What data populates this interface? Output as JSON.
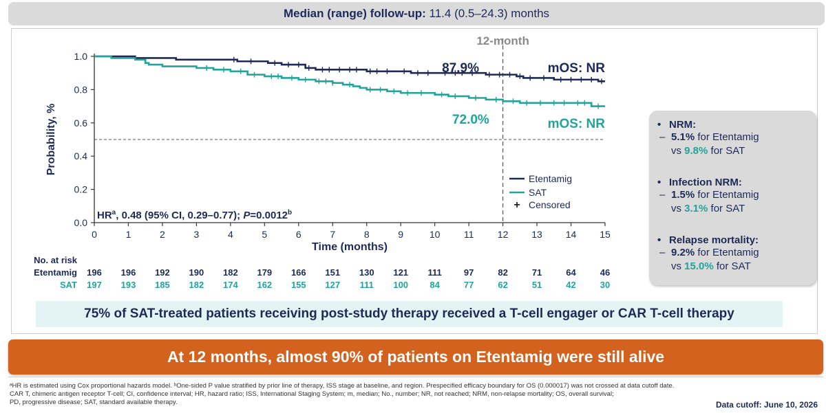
{
  "followup": {
    "label": "Median (range) follow-up:",
    "value": "11.4 (0.5–24.3) months"
  },
  "chart_data": {
    "type": "line",
    "xlabel": "Time (months)",
    "ylabel": "Probability, %",
    "xlim": [
      0,
      15
    ],
    "ylim": [
      0,
      1.0
    ],
    "x_ticks": [
      "0",
      "1",
      "2",
      "3",
      "4",
      "5",
      "6",
      "7",
      "8",
      "9",
      "10",
      "11",
      "12",
      "13",
      "14",
      "15"
    ],
    "y_ticks": [
      "0.0",
      "0.2",
      "0.4",
      "0.6",
      "0.8",
      "1.0"
    ],
    "reference_line_y": 0.5,
    "landmark_x": 12,
    "landmark_label": "12-month",
    "colors": {
      "etentamig": "#1d2a57",
      "sat": "#21a59a",
      "reference": "#555555"
    },
    "series": [
      {
        "name": "Etentamig",
        "curve": [
          [
            0,
            1.0
          ],
          [
            1.1,
            1.0
          ],
          [
            1.2,
            0.99
          ],
          [
            2.2,
            0.99
          ],
          [
            2.4,
            0.98
          ],
          [
            4.0,
            0.98
          ],
          [
            4.2,
            0.97
          ],
          [
            4.9,
            0.97
          ],
          [
            5.1,
            0.96
          ],
          [
            5.5,
            0.95
          ],
          [
            6.2,
            0.93
          ],
          [
            6.5,
            0.92
          ],
          [
            7.8,
            0.92
          ],
          [
            8.0,
            0.91
          ],
          [
            9.0,
            0.91
          ],
          [
            9.3,
            0.9
          ],
          [
            11.3,
            0.9
          ],
          [
            11.5,
            0.89
          ],
          [
            12.0,
            0.89
          ],
          [
            12.4,
            0.88
          ],
          [
            12.6,
            0.87
          ],
          [
            13.0,
            0.87
          ],
          [
            13.5,
            0.86
          ],
          [
            14.5,
            0.86
          ],
          [
            14.8,
            0.85
          ],
          [
            15.0,
            0.85
          ]
        ],
        "censored": [
          4.1,
          4.6,
          5.3,
          5.7,
          6.0,
          6.3,
          6.7,
          6.9,
          7.2,
          7.5,
          7.7,
          8.1,
          8.3,
          8.6,
          9.1,
          9.5,
          9.8,
          10.3,
          10.6,
          10.8,
          11.1,
          11.6,
          11.9,
          12.2,
          12.5,
          12.8,
          13.2,
          13.7,
          14.0,
          14.3,
          14.6,
          14.9
        ],
        "landmark_value": "87.9%",
        "median_label": "mOS: NR"
      },
      {
        "name": "SAT",
        "curve": [
          [
            0,
            1.0
          ],
          [
            0.5,
            0.99
          ],
          [
            1.2,
            0.98
          ],
          [
            1.5,
            0.96
          ],
          [
            1.6,
            0.95
          ],
          [
            2.0,
            0.94
          ],
          [
            3.0,
            0.93
          ],
          [
            3.5,
            0.92
          ],
          [
            4.0,
            0.91
          ],
          [
            4.5,
            0.89
          ],
          [
            5.0,
            0.88
          ],
          [
            5.5,
            0.87
          ],
          [
            6.0,
            0.86
          ],
          [
            6.5,
            0.85
          ],
          [
            7.0,
            0.84
          ],
          [
            7.3,
            0.83
          ],
          [
            7.6,
            0.82
          ],
          [
            7.8,
            0.81
          ],
          [
            8.0,
            0.8
          ],
          [
            8.6,
            0.79
          ],
          [
            9.0,
            0.78
          ],
          [
            10.0,
            0.77
          ],
          [
            10.4,
            0.76
          ],
          [
            11.0,
            0.75
          ],
          [
            11.5,
            0.74
          ],
          [
            12.0,
            0.73
          ],
          [
            12.5,
            0.72
          ],
          [
            14.5,
            0.72
          ],
          [
            14.6,
            0.7
          ],
          [
            15.0,
            0.7
          ]
        ],
        "censored": [
          3.3,
          3.8,
          4.3,
          4.7,
          5.2,
          5.4,
          5.8,
          6.2,
          6.6,
          6.8,
          7.0,
          7.5,
          8.1,
          8.4,
          8.8,
          9.2,
          9.6,
          10.2,
          10.6,
          11.2,
          11.8,
          12.3,
          12.7,
          13.1,
          13.5,
          13.8,
          14.2,
          14.4,
          14.8
        ],
        "landmark_value": "72.0%",
        "median_label": "mOS: NR"
      }
    ],
    "legend": {
      "etentamig": "Etentamig",
      "sat": "SAT",
      "censored": "Censored",
      "censored_mark": "+"
    },
    "annotation": {
      "hr_prefix": "HR",
      "hr_sup": "a",
      "hr_main": ", 0.48 (95% CI, 0.29–0.77); ",
      "p_italic": "P",
      "p_value": "=0.0012",
      "p_sup": "b"
    },
    "risk_table": {
      "title": "No. at risk",
      "etentamig_label": "Etentamig",
      "sat_label": "SAT",
      "etentamig": [
        "196",
        "196",
        "192",
        "190",
        "182",
        "179",
        "166",
        "151",
        "130",
        "121",
        "111",
        "97",
        "82",
        "71",
        "64",
        "46"
      ],
      "sat": [
        "197",
        "193",
        "185",
        "182",
        "174",
        "162",
        "155",
        "127",
        "111",
        "100",
        "84",
        "77",
        "62",
        "51",
        "42",
        "30"
      ]
    }
  },
  "infobox": {
    "items": [
      {
        "title": "NRM:",
        "e_value": "5.1%",
        "e_text": " for Etentamig",
        "s_prefix": "vs ",
        "s_value": "9.8%",
        "s_text": " for SAT"
      },
      {
        "title": "Infection NRM:",
        "e_value": "1.5%",
        "e_text": " for Etentamig",
        "s_prefix": "vs ",
        "s_value": "3.1%",
        "s_text": " for SAT"
      },
      {
        "title": "Relapse mortality:",
        "e_value": "9.2%",
        "e_text": " for Etentamig",
        "s_prefix": "vs ",
        "s_value": "15.0%",
        "s_text": " for SAT"
      }
    ]
  },
  "callout": "75% of SAT-treated patients receiving post-study therapy received a T-cell engager or CAR T-cell therapy",
  "banner": "At 12 months, almost 90% of patients on Etentamig were still alive",
  "footnotes": {
    "line1": "ᵃHR is estimated using Cox proportional hazards model. ᵇOne-sided P value stratified by prior line of therapy, ISS stage at baseline, and region. Prespecified efficacy boundary for OS (0.000017) was not crossed at data cutoff date.",
    "line2": "CAR T, chimeric antigen receptor T-cell; CI, confidence interval; HR, hazard ratio; ISS, International Staging System; m, median; No., number; NR, not reached; NRM, non-relapse mortality; OS, overall survival;",
    "line3": "PD, progressive disease; SAT, standard available therapy."
  },
  "cutoff": "Data cutoff: June 10, 2026"
}
